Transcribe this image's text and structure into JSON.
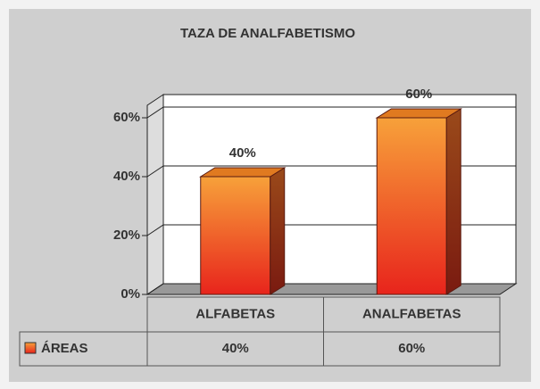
{
  "chart_data": {
    "type": "bar3d",
    "title": "TAZA DE ANALFABETISMO",
    "categories": [
      "ALFABETAS",
      "ANALFABETAS"
    ],
    "series": [
      {
        "name": "ÁREAS",
        "values": [
          40,
          60
        ],
        "value_labels": [
          "40%",
          "60%"
        ]
      }
    ],
    "ylim": [
      0,
      60
    ],
    "yticks": [
      {
        "value": 0,
        "label": "0%"
      },
      {
        "value": 20,
        "label": "20%"
      },
      {
        "value": 40,
        "label": "40%"
      },
      {
        "value": 60,
        "label": "60%"
      }
    ],
    "grid": true,
    "data_table": true
  }
}
